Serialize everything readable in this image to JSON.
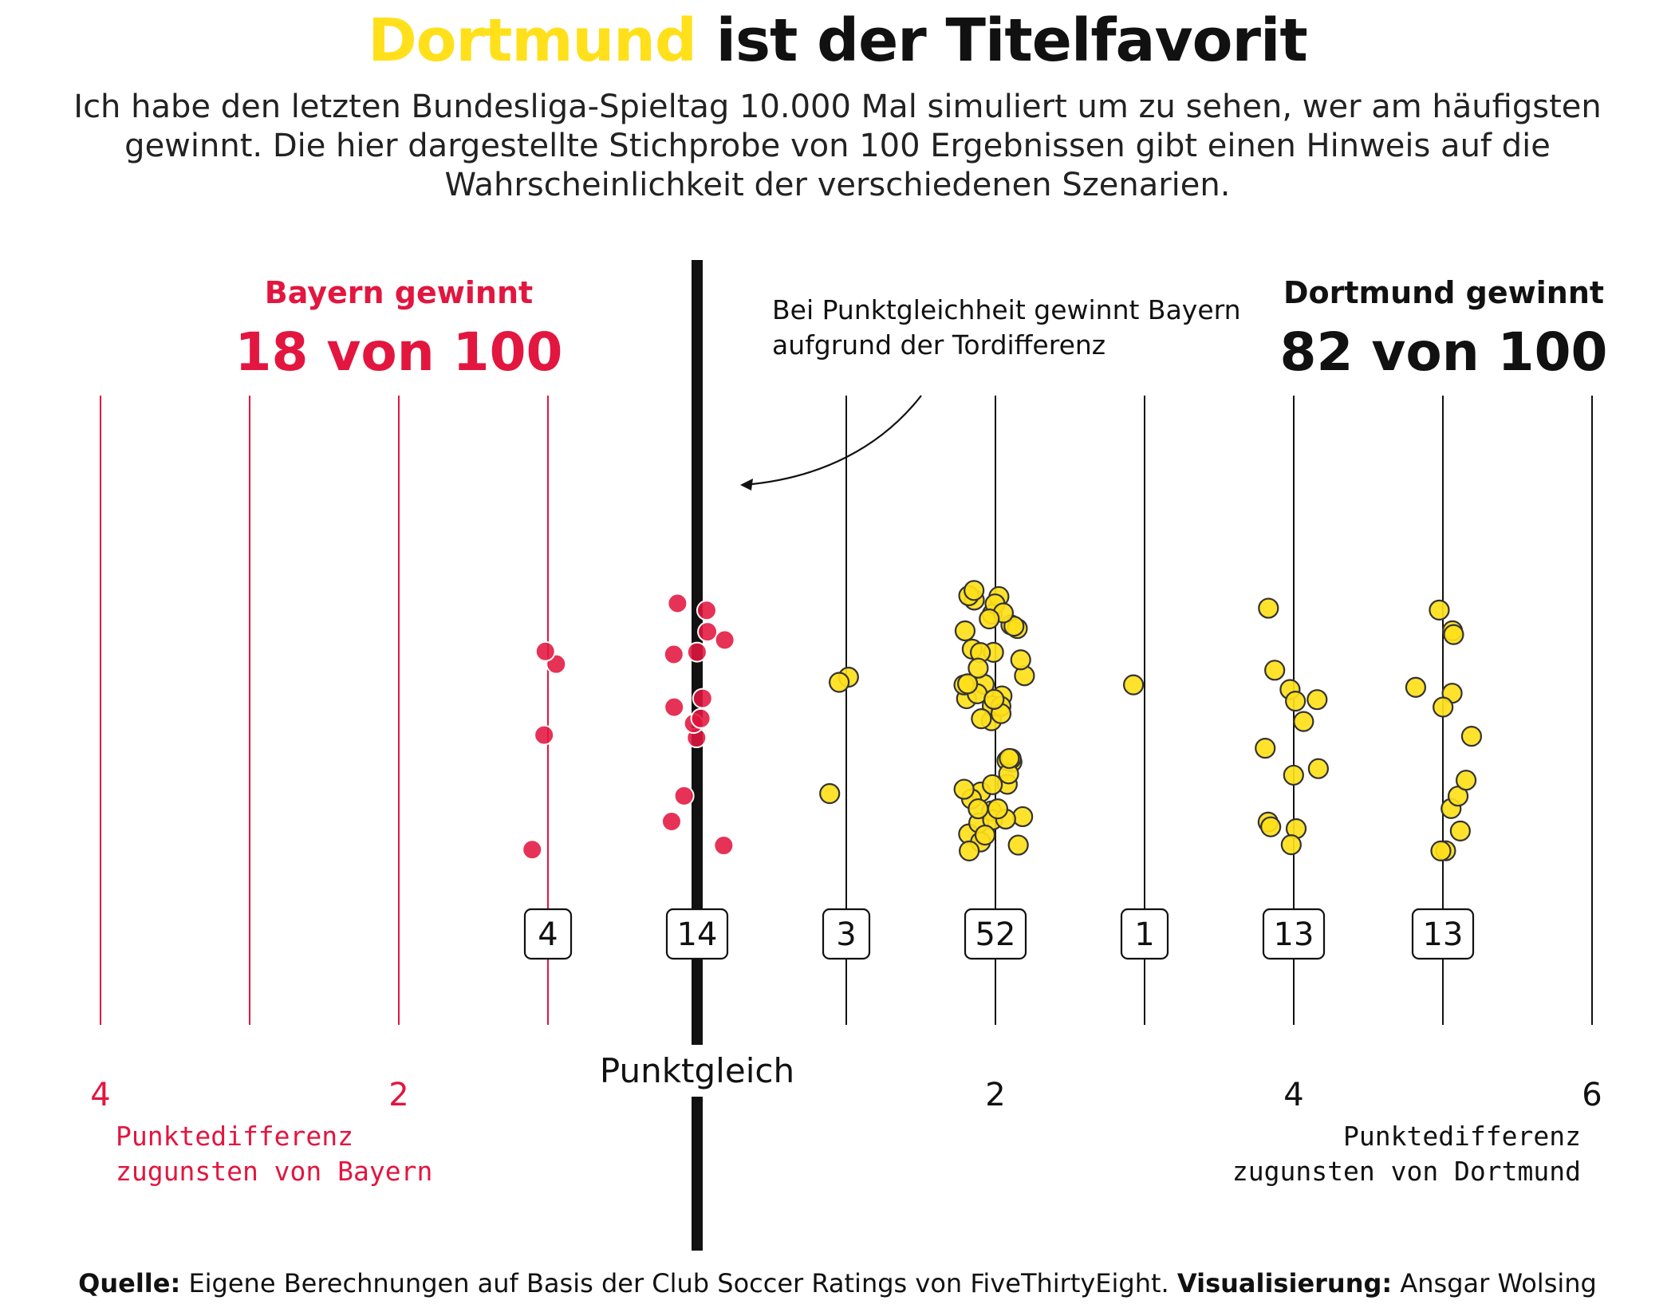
{
  "title": {
    "highlight": "Dortmund",
    "rest": "ist der Titelfavorit"
  },
  "subtitle": "Ich habe den letzten Bundesliga-Spieltag 10.000 Mal simuliert um zu sehen, wer am häufigsten gewinnt. Die hier dargestellte Stichprobe von 100 Ergebnissen gibt einen Hinweis auf die Wahrscheinlichkeit der verschiedenen Szenarien.",
  "bayern": {
    "label": "Bayern gewinnt",
    "count": "18 von 100",
    "color": "#e2163f"
  },
  "dortmund": {
    "label": "Dortmund gewinnt",
    "count": "82 von 100",
    "color": "#ffe01a"
  },
  "annotation": {
    "line1": "Bei Punktgleichheit gewinnt Bayern",
    "line2": "aufgrund der Tordifferenz"
  },
  "footer": {
    "source_label": "Quelle:",
    "source_text": "Eigene Berechnungen auf Basis der Club Soccer Ratings von FiveThirtyEight.",
    "vis_label": "Visualisierung:",
    "vis_text": "Ansgar Wolsing"
  },
  "chart_data": {
    "type": "scatter",
    "xlabel_left": "Punktedifferenz zugunsten von Bayern",
    "xlabel_right": "Punktedifferenz zugunsten von Dortmund",
    "center_label": "Punktgleich",
    "x_range": [
      -4,
      6
    ],
    "tick_labels": [
      {
        "x": -4,
        "label": "4",
        "side": "bayern"
      },
      {
        "x": -2,
        "label": "2",
        "side": "bayern"
      },
      {
        "x": 2,
        "label": "2",
        "side": "dortmund"
      },
      {
        "x": 4,
        "label": "4",
        "side": "dortmund"
      },
      {
        "x": 6,
        "label": "6",
        "side": "dortmund"
      }
    ],
    "counts": [
      {
        "x": -1,
        "count": "4"
      },
      {
        "x": 0,
        "count": "14"
      },
      {
        "x": 1,
        "count": "3"
      },
      {
        "x": 2,
        "count": "52"
      },
      {
        "x": 3,
        "count": "1"
      },
      {
        "x": 4,
        "count": "13"
      },
      {
        "x": 5,
        "count": "13"
      }
    ],
    "series": [
      {
        "name": "Bayern gewinnt",
        "color": "#e2163f",
        "counts": {
          "-1": 4,
          "0": 14
        }
      },
      {
        "name": "Dortmund gewinnt",
        "color": "#ffe01a",
        "counts": {
          "1": 3,
          "2": 52,
          "3": 1,
          "4": 13,
          "5": 13
        }
      }
    ],
    "jitter_note": ""
  }
}
